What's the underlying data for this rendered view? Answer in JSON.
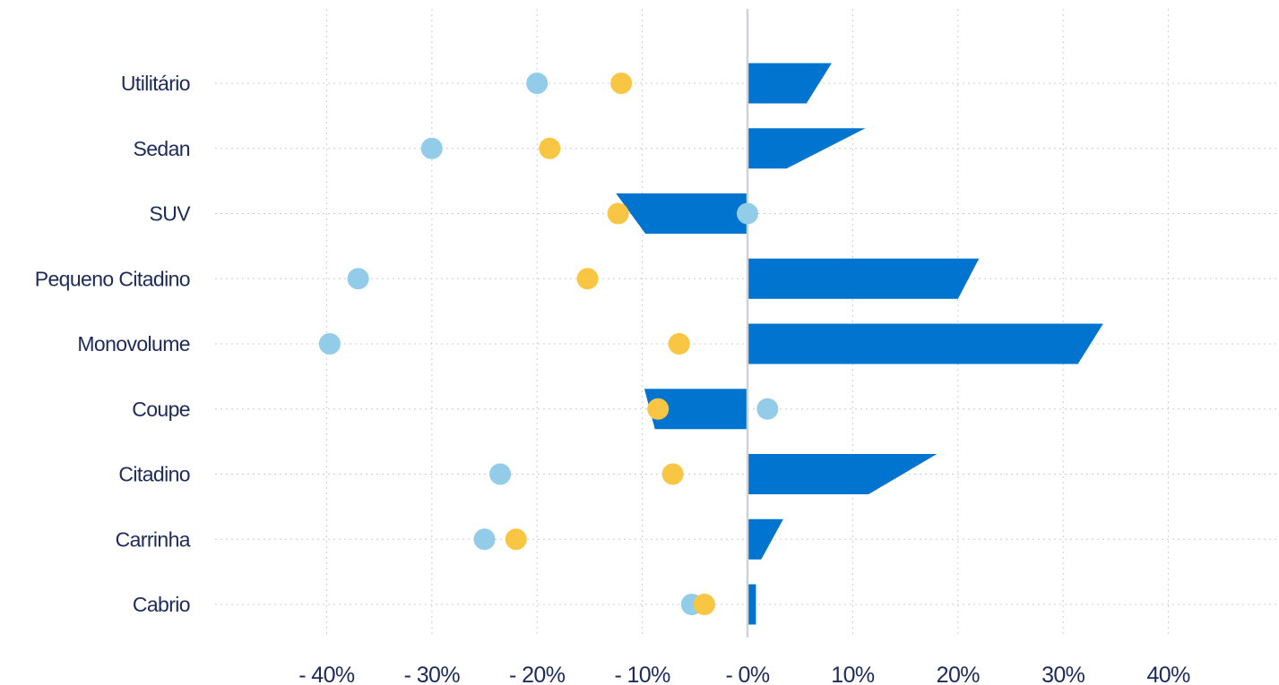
{
  "chart_data": {
    "type": "bar",
    "orientation": "horizontal",
    "title": "",
    "xlabel": "",
    "ylabel": "",
    "categories": [
      "Utilitário",
      "Sedan",
      "SUV",
      "Pequeno Citadino",
      "Monovolume",
      "Coupe",
      "Citadino",
      "Carrinha",
      "Cabrio"
    ],
    "x_ticks": [
      -40,
      -30,
      -20,
      -10,
      0,
      10,
      20,
      30,
      40
    ],
    "x_tick_labels": [
      "- 40%",
      "- 30%",
      "- 20%",
      "- 10%",
      "- 0%",
      "10%",
      "20%",
      "30%",
      "40%"
    ],
    "xlim": [
      -48,
      50
    ],
    "grid": true,
    "legend": "none",
    "series": [
      {
        "kind": "bar-wedge",
        "color": "#0074cf",
        "start_values": [
          8.0,
          11.2,
          -12.5,
          22.0,
          33.8,
          -9.8,
          18.0,
          3.4,
          0.8
        ],
        "end_values": [
          5.6,
          3.7,
          -9.7,
          20.0,
          31.4,
          -8.8,
          11.5,
          1.3,
          0.8
        ]
      },
      {
        "kind": "points",
        "color": "#93cce8",
        "values": [
          -20.0,
          -30.0,
          0.0,
          -37.0,
          -39.7,
          1.9,
          -23.5,
          -25.0,
          -5.3
        ]
      },
      {
        "kind": "points",
        "color": "#f8c643",
        "values": [
          -12.0,
          -18.8,
          -12.3,
          -15.2,
          -6.5,
          -8.5,
          -7.1,
          -22.0,
          -4.1
        ]
      }
    ]
  }
}
